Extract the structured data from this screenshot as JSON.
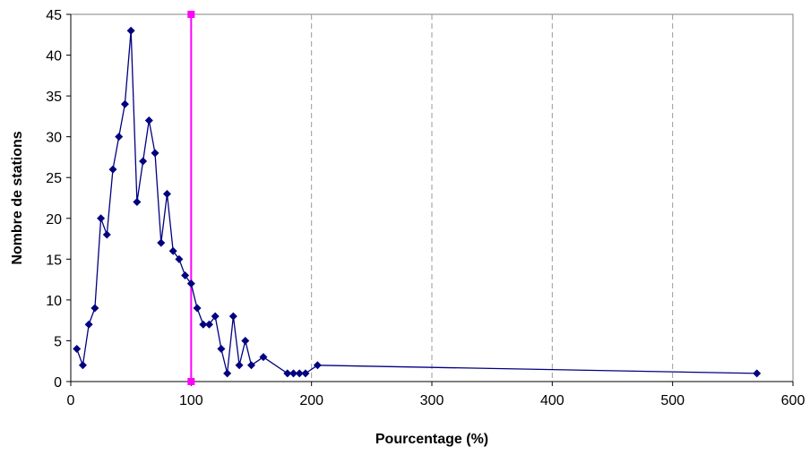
{
  "chart_data": {
    "type": "line",
    "title": "",
    "xlabel": "Pourcentage (%)",
    "ylabel": "Nombre de stations",
    "xlim": [
      0,
      600
    ],
    "ylim": [
      0,
      45
    ],
    "x_ticks": [
      0,
      100,
      200,
      300,
      400,
      500,
      600
    ],
    "y_ticks": [
      0,
      5,
      10,
      15,
      20,
      25,
      30,
      35,
      40,
      45
    ],
    "grid": "vertical dashed lines at x = 200, 300, 400, 500",
    "legend": "none",
    "series": [
      {
        "color": "#000080",
        "marker": "diamond",
        "x": [
          5,
          10,
          15,
          20,
          25,
          30,
          35,
          40,
          45,
          50,
          55,
          60,
          65,
          70,
          75,
          80,
          85,
          90,
          95,
          100,
          105,
          110,
          115,
          120,
          125,
          130,
          135,
          140,
          145,
          150,
          160,
          180,
          185,
          190,
          195,
          205,
          570
        ],
        "y": [
          4,
          2,
          7,
          9,
          20,
          18,
          26,
          30,
          34,
          43,
          22,
          27,
          32,
          28,
          17,
          23,
          16,
          15,
          13,
          12,
          9,
          7,
          7,
          8,
          4,
          1,
          8,
          2,
          5,
          2,
          3,
          1,
          1,
          1,
          1,
          2,
          1
        ]
      }
    ],
    "reference_line": {
      "x": 100,
      "y_range": [
        0,
        45
      ],
      "color": "#ff00ff",
      "marker": "square"
    }
  }
}
